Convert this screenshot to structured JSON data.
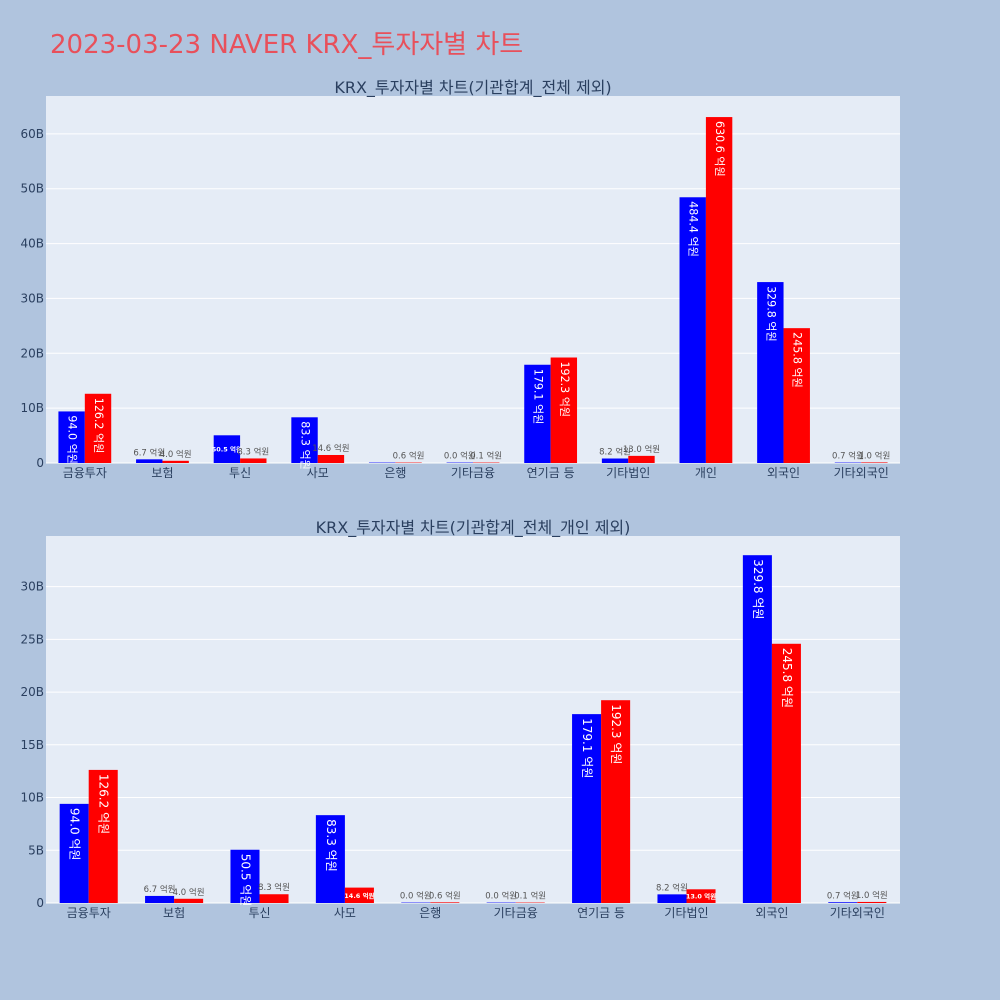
{
  "page_title": "2023-03-23 NAVER KRX_투자자별 차트",
  "colors": {
    "background": "#b0c4de",
    "plot_bg": "#e5ecf6",
    "title": "#e8505b",
    "buy": "#0000ff",
    "sell": "#ff0000"
  },
  "chart_data": [
    {
      "type": "bar",
      "title": "KRX_투자자별 차트(기관합계_전체 제외)",
      "categories": [
        "금융투자",
        "보험",
        "투신",
        "사모",
        "은행",
        "기타금융",
        "연기금 등",
        "기타법인",
        "개인",
        "외국인",
        "기타외국인"
      ],
      "series": [
        {
          "color": "#0000ff",
          "values": [
            9.4,
            0.67,
            5.05,
            8.33,
            0.0,
            0.0,
            17.91,
            0.82,
            48.44,
            32.98,
            0.07
          ],
          "labels": [
            "94.0 억원",
            "6.7 억원",
            "50.5 억원",
            "83.3 억원",
            "",
            "0.0 억원",
            "179.1 억원",
            "8.2 억원",
            "484.4 억원",
            "329.8 억원",
            "0.7 억원"
          ]
        },
        {
          "color": "#ff0000",
          "values": [
            12.62,
            0.4,
            0.83,
            1.46,
            0.06,
            0.01,
            19.23,
            1.3,
            63.06,
            24.58,
            0.1
          ],
          "labels": [
            "126.2 억원",
            "4.0 억원",
            "8.3 억원",
            "14.6 억원",
            "0.6 억원",
            "0.1 억원",
            "192.3 억원",
            "13.0 억원",
            "630.6 억원",
            "245.8 억원",
            "1.0 억원"
          ]
        }
      ],
      "y_ticks": [
        0,
        10,
        20,
        30,
        40,
        50,
        60
      ],
      "y_tick_labels": [
        "0",
        "10B",
        "20B",
        "30B",
        "40B",
        "50B",
        "60B"
      ],
      "ylim": [
        0,
        66.9
      ],
      "grid": true
    },
    {
      "type": "bar",
      "title": "KRX_투자자별 차트(기관합계_전체_개인 제외)",
      "categories": [
        "금융투자",
        "보험",
        "투신",
        "사모",
        "은행",
        "기타금융",
        "연기금 등",
        "기타법인",
        "외국인",
        "기타외국인"
      ],
      "series": [
        {
          "color": "#0000ff",
          "values": [
            9.4,
            0.67,
            5.05,
            8.33,
            0.0,
            0.0,
            17.91,
            0.82,
            32.98,
            0.07
          ],
          "labels": [
            "94.0 억원",
            "6.7 억원",
            "50.5 억원",
            "83.3 억원",
            "0.0 억원",
            "0.0 억원",
            "179.1 억원",
            "8.2 억원",
            "329.8 억원",
            "0.7 억원"
          ]
        },
        {
          "color": "#ff0000",
          "values": [
            12.62,
            0.4,
            0.83,
            1.46,
            0.06,
            0.01,
            19.23,
            1.3,
            24.58,
            0.1
          ],
          "labels": [
            "126.2 억원",
            "4.0 억원",
            "8.3 억원",
            "14.6 억원",
            "0.6 억원",
            "0.1 억원",
            "192.3 억원",
            "13.0 억원",
            "245.8 억원",
            "1.0 억원"
          ]
        }
      ],
      "y_ticks": [
        0,
        5,
        10,
        15,
        20,
        25,
        30
      ],
      "y_tick_labels": [
        "0",
        "5B",
        "10B",
        "15B",
        "20B",
        "25B",
        "30B"
      ],
      "ylim": [
        0,
        34.8
      ],
      "grid": true
    }
  ]
}
